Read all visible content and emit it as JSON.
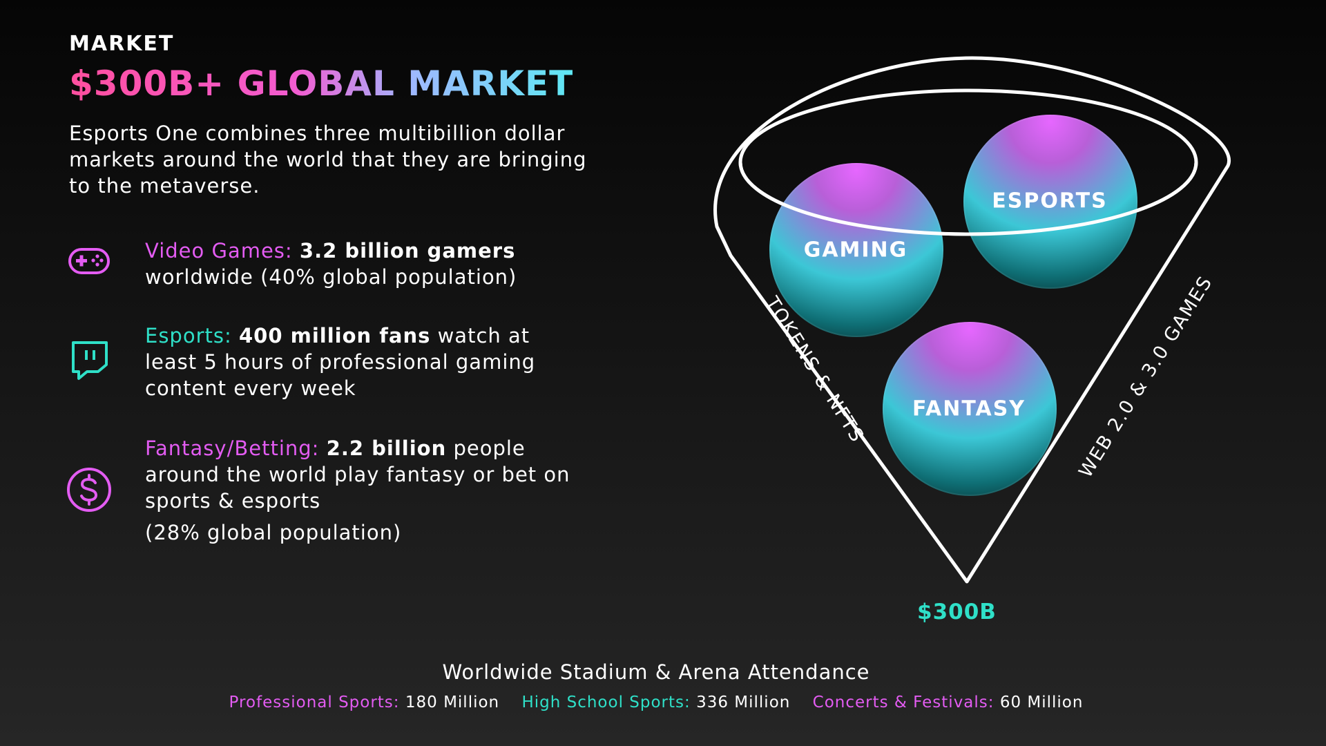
{
  "eyebrow": "MARKET",
  "headline": "$300B+ GLOBAL MARKET",
  "intro": "Esports One combines three multibillion dollar markets around the world that they are bringing to the metaverse.",
  "features": [
    {
      "icon": "gamepad-icon",
      "label": "Video Games:",
      "highlight": "3.2 billion gamers",
      "text": "worldwide (40% global population)"
    },
    {
      "icon": "twitch-icon",
      "label": "Esports:",
      "highlight": "400 million fans",
      "text": "watch at least 5 hours of professional gaming content every week"
    },
    {
      "icon": "dollar-coin-icon",
      "label": "Fantasy/Betting:",
      "highlight": "2.2 billion",
      "text": "people around the world play fantasy or bet on sports & esports"
    }
  ],
  "feature_note": "(28% global population)",
  "diagram": {
    "orbs": [
      "GAMING",
      "ESPORTS",
      "FANTASY"
    ],
    "left_label": "TOKENS & NFTS",
    "right_label": "WEB 2.0 & 3.0 GAMES",
    "total": "$300B"
  },
  "attendance": {
    "title": "Worldwide Stadium & Arena Attendance",
    "items": [
      {
        "label": "Professional Sports:",
        "value": "180 Million"
      },
      {
        "label": "High School Sports:",
        "value": "336 Million"
      },
      {
        "label": "Concerts & Festivals:",
        "value": "60 Million"
      }
    ]
  },
  "colors": {
    "pink": "#e35cf2",
    "teal": "#2fe0c8",
    "background": "#0b0b0b"
  }
}
